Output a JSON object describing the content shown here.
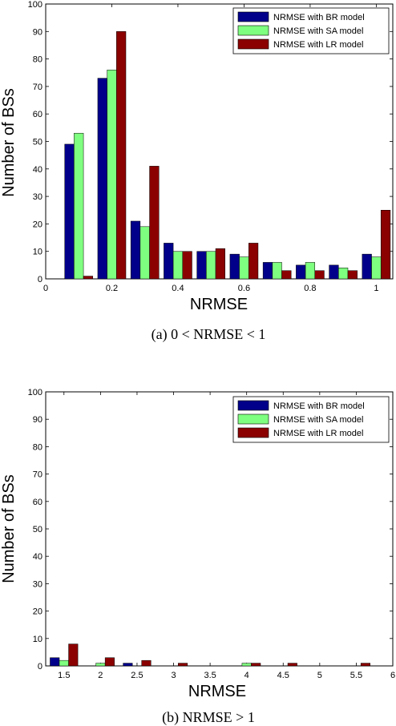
{
  "colors": {
    "br": "#00008b",
    "sa": "#7fff7f",
    "lr": "#8b0000"
  },
  "chart_data": [
    {
      "type": "bar",
      "xlabel": "NRMSE",
      "ylabel": "Number of BSs",
      "caption": "(a) 0 < NRMSE < 1",
      "xlim": [
        0,
        1.05
      ],
      "ylim": [
        0,
        100
      ],
      "xticks": [
        0,
        0.2,
        0.4,
        0.6,
        0.8,
        1
      ],
      "xtick_labels": [
        "0",
        "0.2",
        "0.4",
        "0.6",
        "0.8",
        "1"
      ],
      "yticks": [
        0,
        10,
        20,
        30,
        40,
        50,
        60,
        70,
        80,
        90,
        100
      ],
      "legend_position": "top-right",
      "x": [
        0.1,
        0.2,
        0.3,
        0.4,
        0.5,
        0.6,
        0.7,
        0.8,
        0.9,
        1.0
      ],
      "series": [
        {
          "name": "NRMSE with BR model",
          "values": [
            49,
            73,
            21,
            13,
            10,
            9,
            6,
            5,
            5,
            9
          ]
        },
        {
          "name": "NRMSE with SA model",
          "values": [
            53,
            76,
            19,
            10,
            10,
            8,
            6,
            6,
            4,
            8
          ]
        },
        {
          "name": "NRMSE with LR model",
          "values": [
            1,
            90,
            41,
            10,
            11,
            13,
            3,
            3,
            3,
            25
          ]
        }
      ]
    },
    {
      "type": "bar",
      "xlabel": "NRMSE",
      "ylabel": "Number of BSs",
      "caption": "(b) NRMSE > 1",
      "xlim": [
        1.25,
        6
      ],
      "ylim": [
        0,
        100
      ],
      "xticks": [
        1.5,
        2,
        2.5,
        3,
        3.5,
        4,
        4.5,
        5,
        5.5,
        6
      ],
      "xtick_labels": [
        "1.5",
        "2",
        "2.5",
        "3",
        "3.5",
        "4",
        "4.5",
        "5",
        "5.5",
        "6"
      ],
      "yticks": [
        0,
        10,
        20,
        30,
        40,
        50,
        60,
        70,
        80,
        90,
        100
      ],
      "legend_position": "top-right",
      "x": [
        1.5,
        2.0,
        2.5,
        3.0,
        3.5,
        4.0,
        4.5,
        5.0,
        5.5
      ],
      "series": [
        {
          "name": "NRMSE with BR model",
          "values": [
            3,
            0,
            1,
            0,
            0,
            0,
            0,
            0,
            0
          ]
        },
        {
          "name": "NRMSE with SA model",
          "values": [
            2,
            1,
            0,
            0,
            0,
            1,
            0,
            0,
            0
          ]
        },
        {
          "name": "NRMSE with LR model",
          "values": [
            8,
            3,
            2,
            1,
            0,
            1,
            1,
            0,
            1
          ]
        }
      ]
    }
  ]
}
